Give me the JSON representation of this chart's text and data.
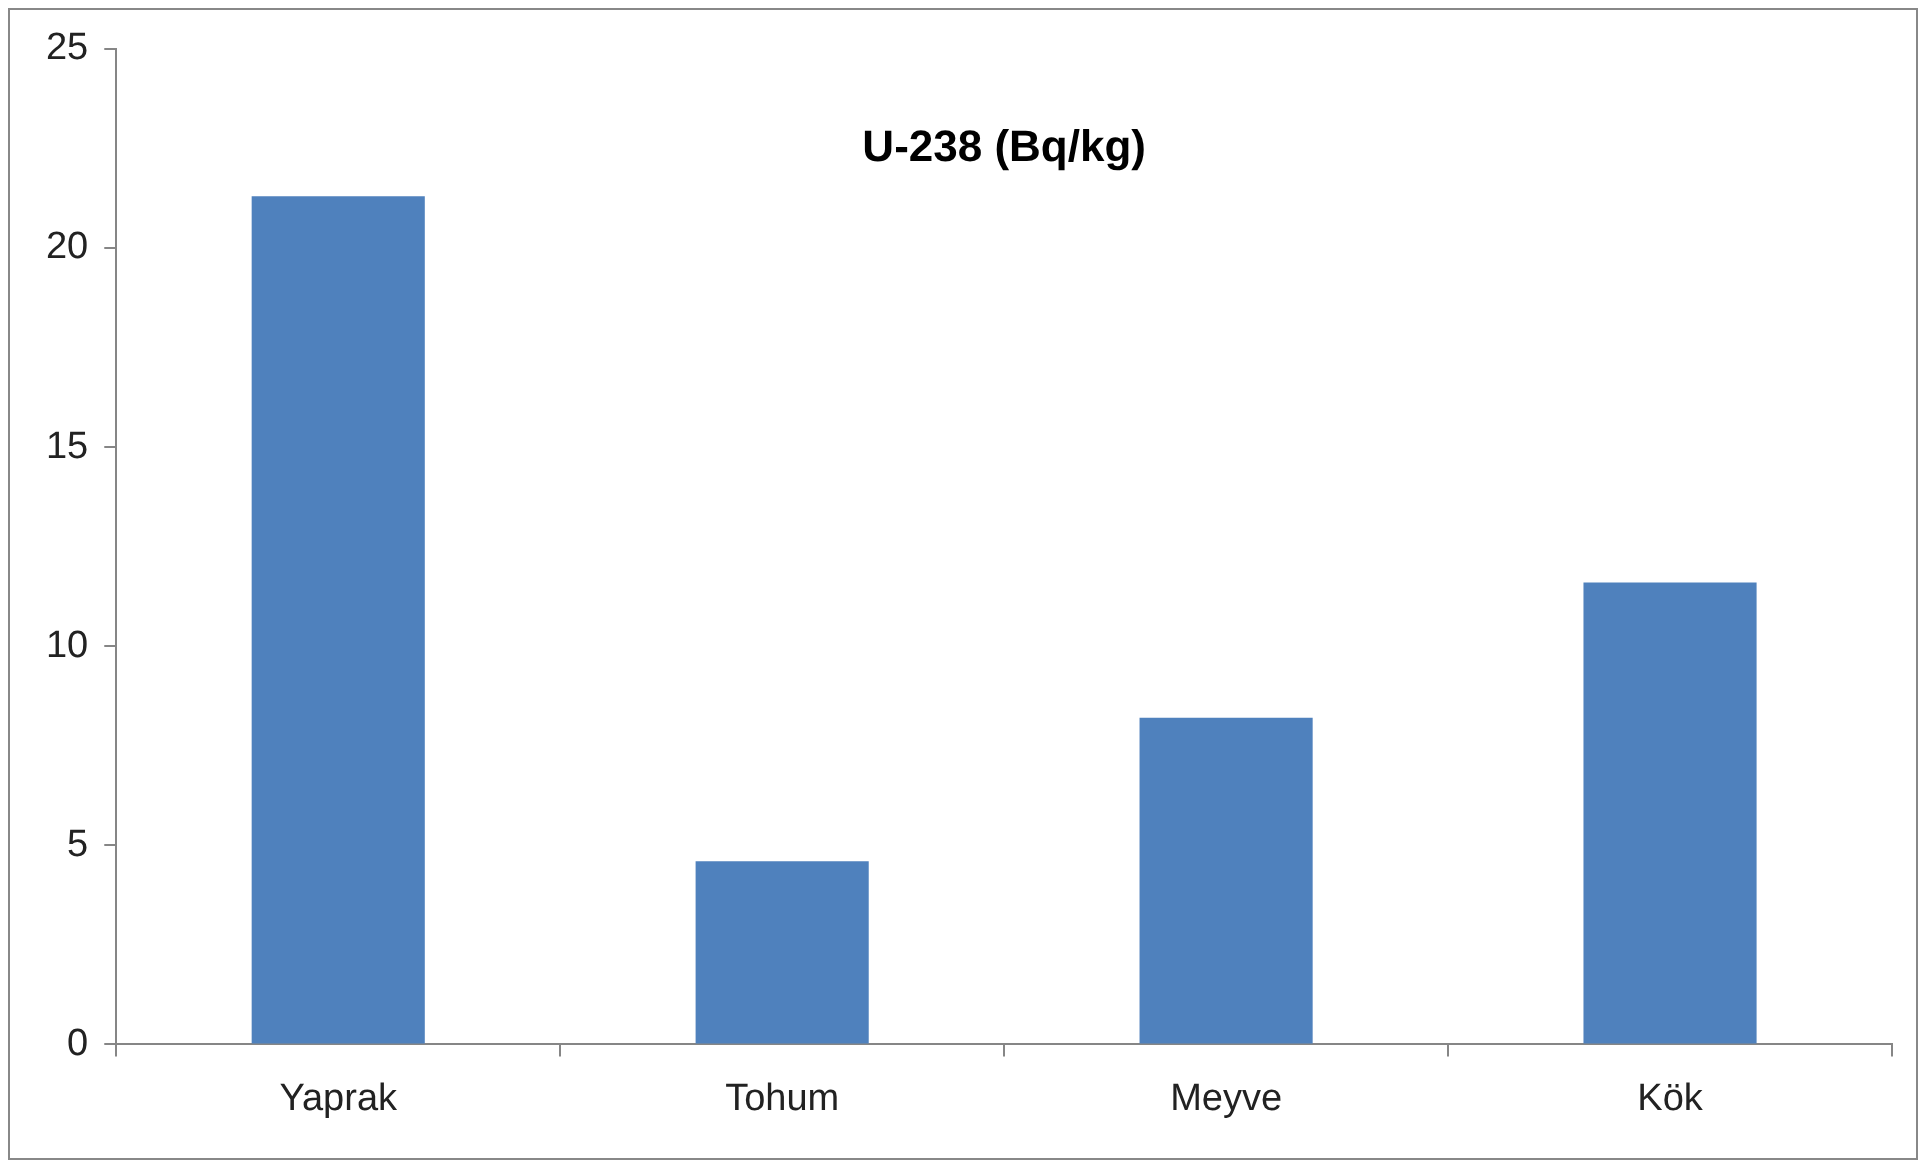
{
  "chart_data": {
    "type": "bar",
    "title": "U-238 (Bq/kg)",
    "categories": [
      "Yaprak",
      "Tohum",
      "Meyve",
      "Kök"
    ],
    "values": [
      21.3,
      4.6,
      8.2,
      11.6
    ],
    "color": "#4f81bd",
    "ylim": [
      0,
      25
    ],
    "yticks": [
      0,
      5,
      10,
      15,
      20,
      25
    ],
    "grid": false,
    "legend": false
  }
}
